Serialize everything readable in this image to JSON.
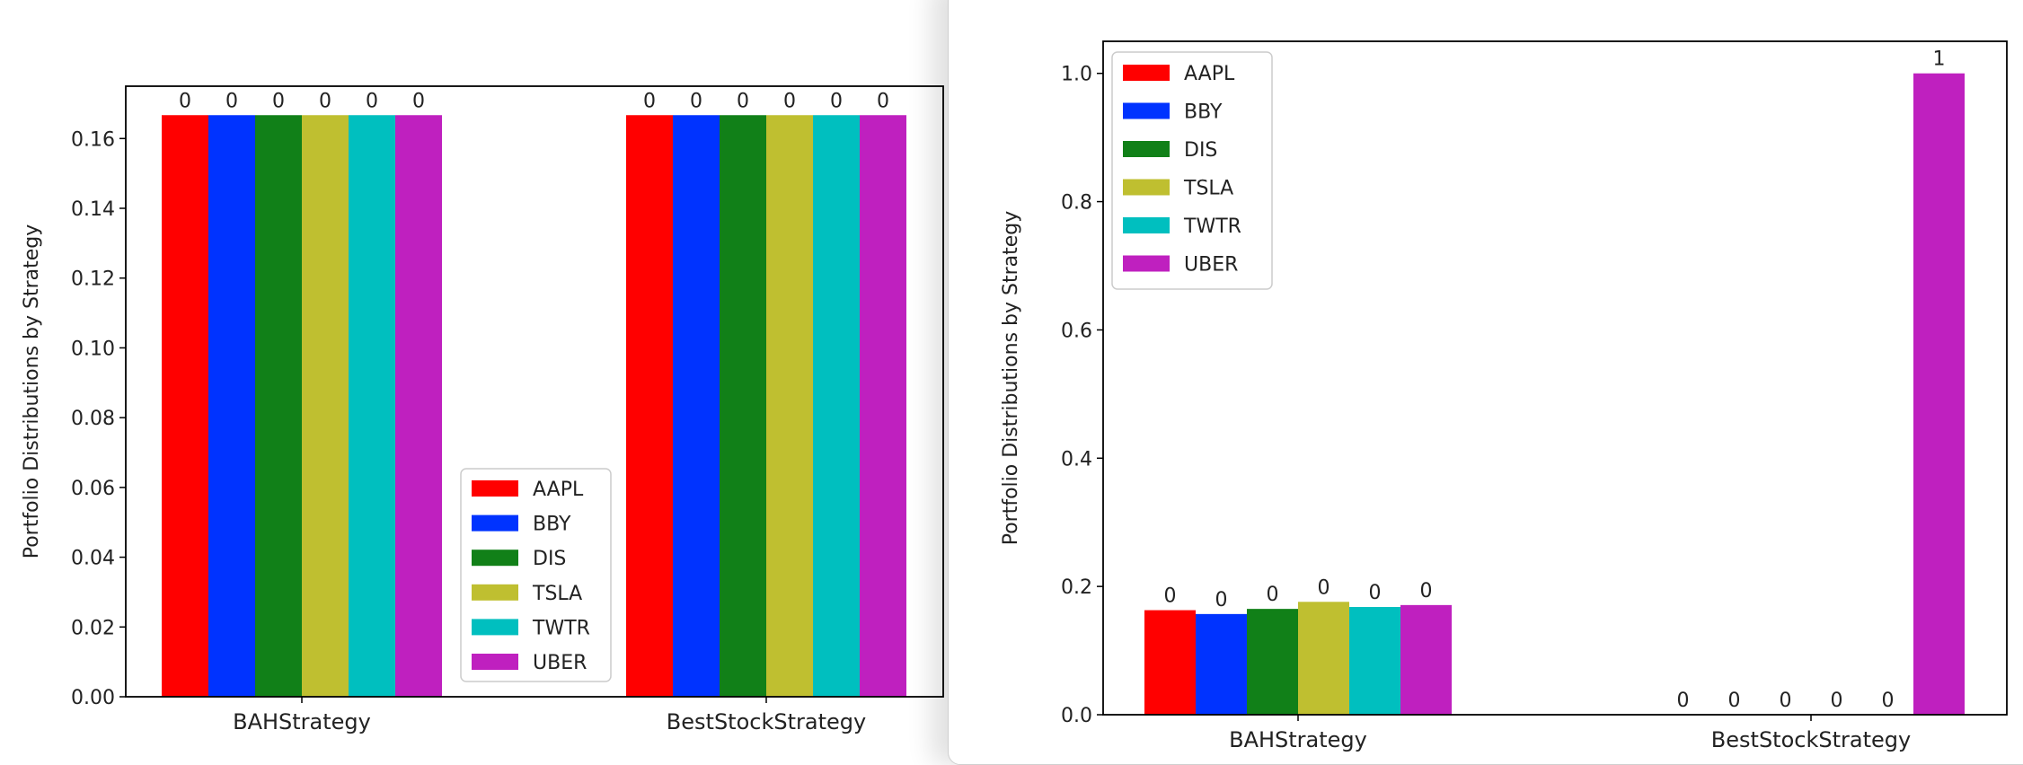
{
  "chart_data": [
    {
      "type": "bar",
      "categories": [
        "BAHStrategy",
        "BestStockStrategy"
      ],
      "ylabel": "Portfolio Distributions by Strategy",
      "ylim": [
        0,
        0.175
      ],
      "yticks": [
        "0.00",
        "0.02",
        "0.04",
        "0.06",
        "0.08",
        "0.10",
        "0.12",
        "0.14",
        "0.16"
      ],
      "legend_position": "lower-center",
      "series": [
        {
          "name": "AAPL",
          "color": "#ff0000",
          "values": [
            0.1667,
            0.1667
          ],
          "labels": [
            "0",
            "0"
          ]
        },
        {
          "name": "BBY",
          "color": "#0033ff",
          "values": [
            0.1667,
            0.1667
          ],
          "labels": [
            "0",
            "0"
          ]
        },
        {
          "name": "DIS",
          "color": "#118018",
          "values": [
            0.1667,
            0.1667
          ],
          "labels": [
            "0",
            "0"
          ]
        },
        {
          "name": "TSLA",
          "color": "#bfbf30",
          "values": [
            0.1667,
            0.1667
          ],
          "labels": [
            "0",
            "0"
          ]
        },
        {
          "name": "TWTR",
          "color": "#00bfbf",
          "values": [
            0.1667,
            0.1667
          ],
          "labels": [
            "0",
            "0"
          ]
        },
        {
          "name": "UBER",
          "color": "#bf20bf",
          "values": [
            0.1667,
            0.1667
          ],
          "labels": [
            "0",
            "0"
          ]
        }
      ]
    },
    {
      "type": "bar",
      "categories": [
        "BAHStrategy",
        "BestStockStrategy"
      ],
      "ylabel": "Portfolio Distributions by Strategy",
      "ylim": [
        0,
        1.05
      ],
      "yticks": [
        "0.0",
        "0.2",
        "0.4",
        "0.6",
        "0.8",
        "1.0"
      ],
      "legend_position": "upper-left",
      "series": [
        {
          "name": "AAPL",
          "color": "#ff0000",
          "values": [
            0.163,
            0
          ],
          "labels": [
            "0",
            "0"
          ]
        },
        {
          "name": "BBY",
          "color": "#0033ff",
          "values": [
            0.157,
            0
          ],
          "labels": [
            "0",
            "0"
          ]
        },
        {
          "name": "DIS",
          "color": "#118018",
          "values": [
            0.165,
            0
          ],
          "labels": [
            "0",
            "0"
          ]
        },
        {
          "name": "TSLA",
          "color": "#bfbf30",
          "values": [
            0.176,
            0
          ],
          "labels": [
            "0",
            "0"
          ]
        },
        {
          "name": "TWTR",
          "color": "#00bfbf",
          "values": [
            0.168,
            0
          ],
          "labels": [
            "0",
            "0"
          ]
        },
        {
          "name": "UBER",
          "color": "#bf20bf",
          "values": [
            0.171,
            1.0
          ],
          "labels": [
            "0",
            "1"
          ]
        }
      ]
    }
  ]
}
